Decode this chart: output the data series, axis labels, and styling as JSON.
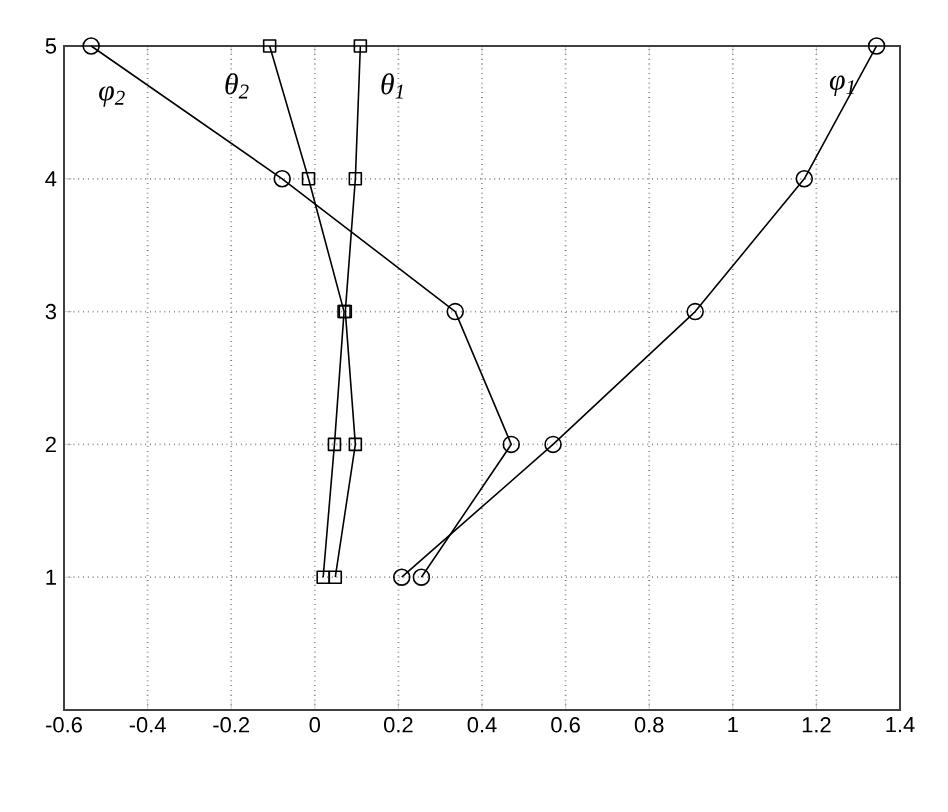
{
  "chart_data": {
    "type": "line",
    "xlim": [
      -0.6,
      1.4
    ],
    "ylim": [
      0,
      5
    ],
    "xticks": [
      -0.6,
      -0.4,
      -0.2,
      0,
      0.2,
      0.4,
      0.6,
      0.8,
      1,
      1.2,
      1.4
    ],
    "yticks": [
      1,
      2,
      3,
      4,
      5
    ],
    "grid": true,
    "legend": false,
    "line_style": "solid",
    "series": [
      {
        "name": "φ$_{2}$",
        "color": "#000000",
        "marker": "circle",
        "x": [
          0.255,
          0.47,
          0.336,
          -0.078,
          -0.535
        ],
        "values": [
          1,
          2,
          3,
          4,
          5
        ]
      },
      {
        "name": "θ$_{2}$",
        "color": "#000000",
        "marker": "square",
        "x": [
          0.02,
          0.047,
          0.07,
          -0.015,
          -0.108
        ],
        "values": [
          1,
          2,
          3,
          4,
          5
        ]
      },
      {
        "name": "θ$_{1}$",
        "color": "#000000",
        "marker": "square",
        "x": [
          0.049,
          0.097,
          0.073,
          0.097,
          0.109
        ],
        "values": [
          1,
          2,
          3,
          4,
          5
        ]
      },
      {
        "name": "φ$_{1}$",
        "color": "#000000",
        "marker": "circle",
        "x": [
          0.208,
          0.57,
          0.91,
          1.171,
          1.344
        ],
        "values": [
          1,
          2,
          3,
          4,
          5
        ]
      }
    ]
  }
}
